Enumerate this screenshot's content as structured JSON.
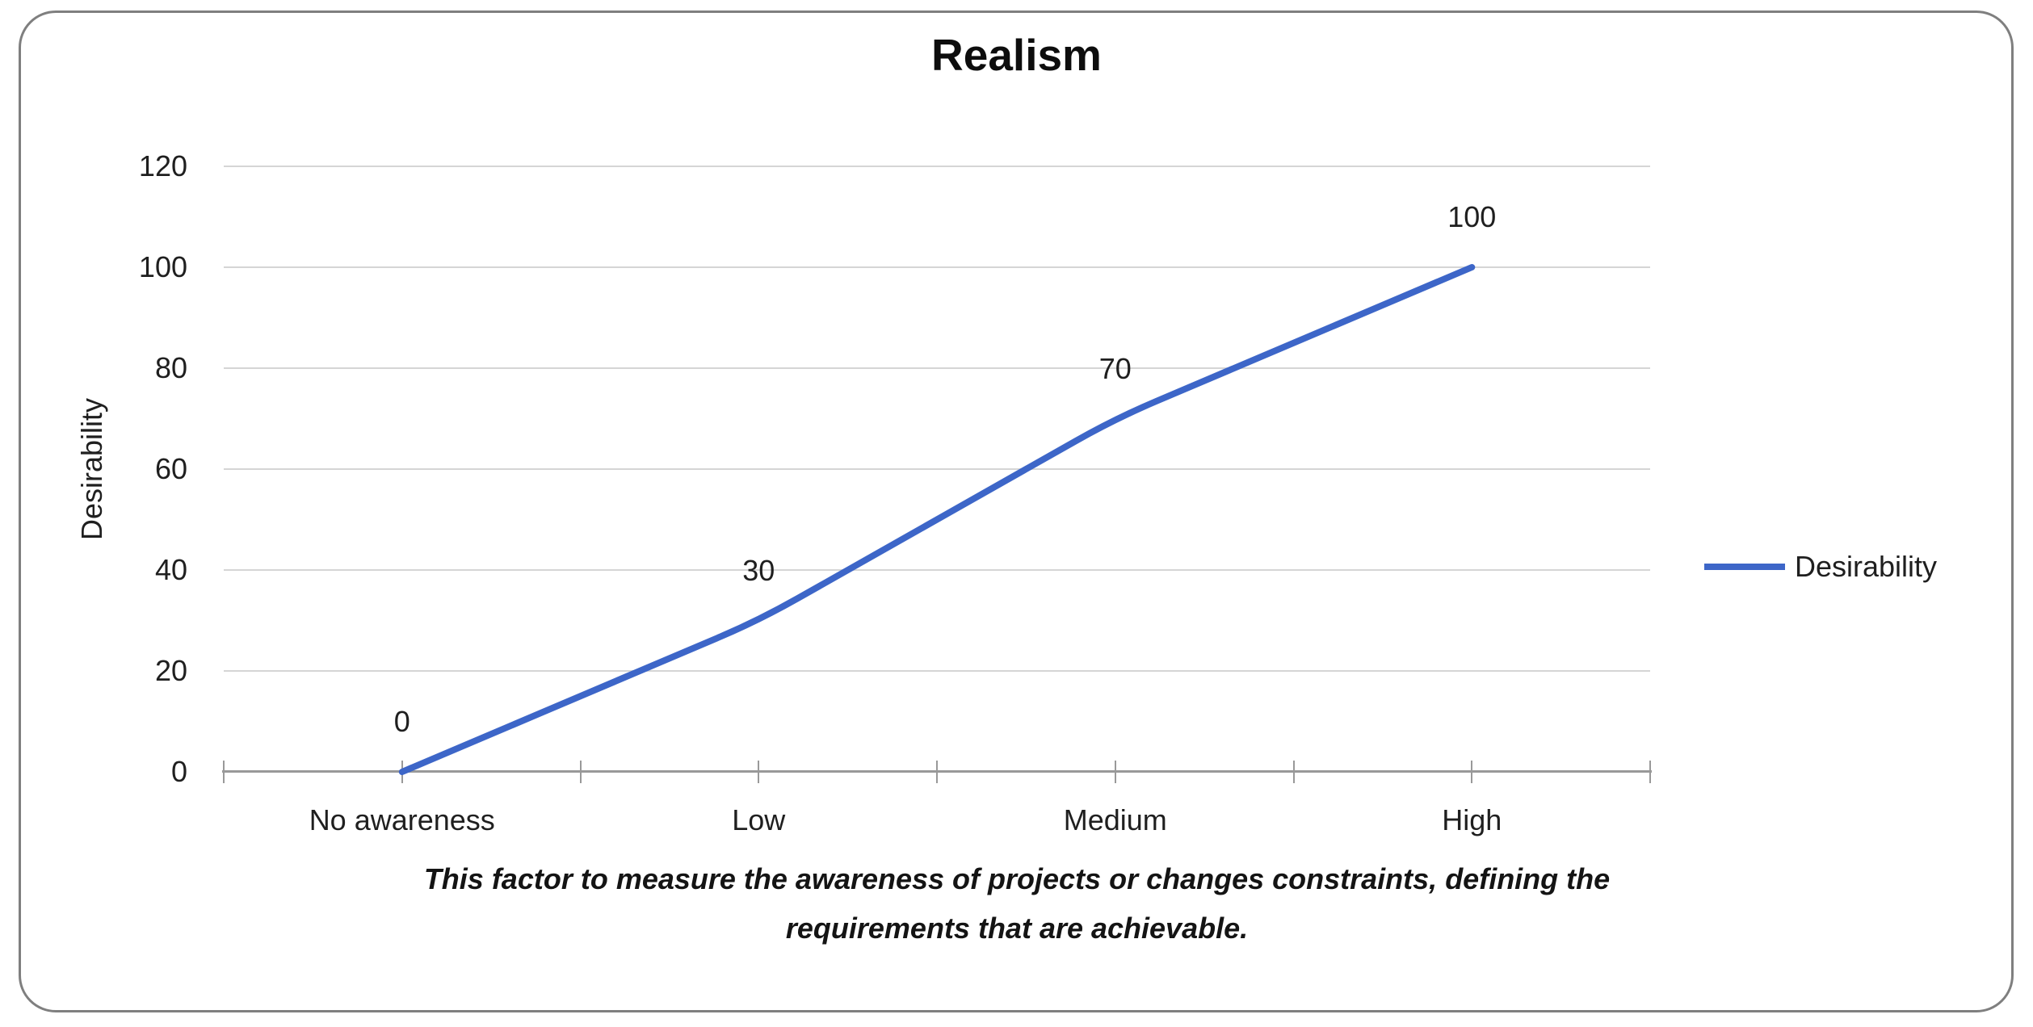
{
  "chart_data": {
    "type": "line",
    "title": "Realism",
    "categories": [
      "No awareness",
      "Low",
      "Medium",
      "High"
    ],
    "series": [
      {
        "name": "Desirability",
        "values": [
          0,
          30,
          70,
          100
        ]
      }
    ],
    "xlabel": "",
    "ylabel": "Desirability",
    "ylim": [
      0,
      120
    ],
    "yticks": [
      0,
      20,
      40,
      60,
      80,
      100,
      120
    ],
    "grid": true,
    "data_labels": [
      0,
      30,
      70,
      100
    ],
    "legend": {
      "position": "right",
      "entries": [
        "Desirability"
      ]
    },
    "line_smoothed": true
  },
  "caption": {
    "text": "This factor to measure the awareness of projects or changes constraints, defining the requirements that are achievable.",
    "lines": [
      "This factor to measure the awareness of projects or changes constraints, defining the",
      "requirements that are achievable."
    ]
  },
  "colors": {
    "series_line": "#3D66C8",
    "gridline": "#D5D5D5",
    "axis_line": "#999999",
    "tick": "#999999",
    "frame_border": "#7F7F7F",
    "text": "#1F1F1F",
    "background": "#FFFFFF"
  }
}
